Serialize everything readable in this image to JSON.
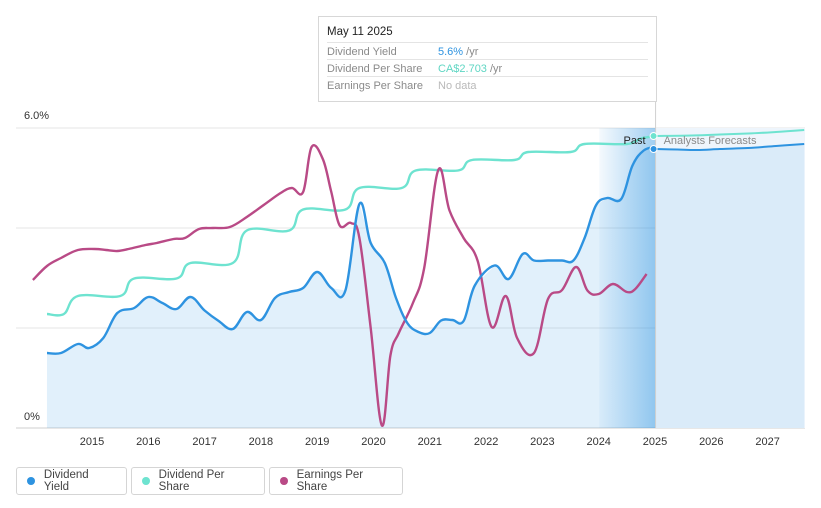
{
  "chart_data": {
    "type": "line",
    "y_axis": {
      "ticks": [
        {
          "value": 0,
          "label": "0%"
        },
        {
          "value": 6,
          "label": "6.0%"
        }
      ],
      "ylim": [
        0,
        6
      ],
      "grid": true
    },
    "x_axis": {
      "ticks": [
        2015,
        2016,
        2017,
        2018,
        2019,
        2020,
        2021,
        2022,
        2023,
        2024,
        2025,
        2026,
        2027
      ],
      "xlim": [
        2014.3,
        2028.0
      ]
    },
    "past_label": "Past",
    "forecast_label": "Analysts Forecasts",
    "series": [
      {
        "name": "Dividend Yield",
        "color": "#2e93e0",
        "filled": true,
        "points": [
          [
            2014.55,
            1.5
          ],
          [
            2014.8,
            1.5
          ],
          [
            2015.1,
            1.68
          ],
          [
            2015.3,
            1.6
          ],
          [
            2015.55,
            1.8
          ],
          [
            2015.8,
            2.3
          ],
          [
            2016.1,
            2.4
          ],
          [
            2016.35,
            2.62
          ],
          [
            2016.6,
            2.5
          ],
          [
            2016.85,
            2.38
          ],
          [
            2017.1,
            2.62
          ],
          [
            2017.35,
            2.35
          ],
          [
            2017.6,
            2.14
          ],
          [
            2017.85,
            1.98
          ],
          [
            2018.1,
            2.32
          ],
          [
            2018.35,
            2.16
          ],
          [
            2018.6,
            2.6
          ],
          [
            2018.85,
            2.72
          ],
          [
            2019.1,
            2.8
          ],
          [
            2019.35,
            3.12
          ],
          [
            2019.6,
            2.8
          ],
          [
            2019.85,
            2.75
          ],
          [
            2020.1,
            4.48
          ],
          [
            2020.3,
            3.7
          ],
          [
            2020.55,
            3.3
          ],
          [
            2020.75,
            2.6
          ],
          [
            2020.95,
            2.1
          ],
          [
            2021.15,
            1.92
          ],
          [
            2021.35,
            1.9
          ],
          [
            2021.55,
            2.15
          ],
          [
            2021.75,
            2.16
          ],
          [
            2021.95,
            2.14
          ],
          [
            2022.15,
            2.85
          ],
          [
            2022.5,
            3.25
          ],
          [
            2022.75,
            2.98
          ],
          [
            2023.0,
            3.48
          ],
          [
            2023.2,
            3.35
          ],
          [
            2023.45,
            3.35
          ],
          [
            2023.7,
            3.35
          ],
          [
            2023.9,
            3.35
          ],
          [
            2024.1,
            3.8
          ],
          [
            2024.3,
            4.45
          ],
          [
            2024.5,
            4.6
          ],
          [
            2024.75,
            4.58
          ],
          [
            2024.95,
            5.25
          ],
          [
            2025.15,
            5.55
          ],
          [
            2025.36,
            5.62
          ]
        ]
      },
      {
        "name": "Dividend Per Share",
        "color": "#6ee3d0",
        "filled": false,
        "points": [
          [
            2014.55,
            2.28
          ],
          [
            2014.85,
            2.28
          ],
          [
            2015.1,
            2.64
          ],
          [
            2015.85,
            2.64
          ],
          [
            2016.1,
            2.99
          ],
          [
            2016.85,
            2.99
          ],
          [
            2017.1,
            3.3
          ],
          [
            2017.85,
            3.3
          ],
          [
            2018.1,
            3.95
          ],
          [
            2018.85,
            3.95
          ],
          [
            2019.1,
            4.37
          ],
          [
            2019.85,
            4.37
          ],
          [
            2020.1,
            4.8
          ],
          [
            2020.85,
            4.8
          ],
          [
            2021.1,
            5.15
          ],
          [
            2021.85,
            5.15
          ],
          [
            2022.1,
            5.36
          ],
          [
            2022.85,
            5.36
          ],
          [
            2023.1,
            5.52
          ],
          [
            2023.85,
            5.52
          ],
          [
            2024.1,
            5.68
          ],
          [
            2024.85,
            5.68
          ],
          [
            2025.1,
            5.79
          ],
          [
            2025.36,
            5.84
          ]
        ]
      },
      {
        "name": "Earnings Per Share",
        "color": "#b94a86",
        "filled": false,
        "points": [
          [
            2014.3,
            2.96
          ],
          [
            2014.55,
            3.24
          ],
          [
            2014.8,
            3.4
          ],
          [
            2015.1,
            3.56
          ],
          [
            2015.4,
            3.58
          ],
          [
            2015.6,
            3.56
          ],
          [
            2015.8,
            3.54
          ],
          [
            2016.0,
            3.58
          ],
          [
            2016.3,
            3.66
          ],
          [
            2016.5,
            3.7
          ],
          [
            2016.8,
            3.78
          ],
          [
            2017.0,
            3.8
          ],
          [
            2017.25,
            3.98
          ],
          [
            2017.5,
            4.0
          ],
          [
            2017.8,
            4.02
          ],
          [
            2018.1,
            4.22
          ],
          [
            2018.4,
            4.46
          ],
          [
            2018.7,
            4.7
          ],
          [
            2018.9,
            4.8
          ],
          [
            2019.1,
            4.72
          ],
          [
            2019.25,
            5.62
          ],
          [
            2019.45,
            5.38
          ],
          [
            2019.6,
            4.72
          ],
          [
            2019.75,
            4.05
          ],
          [
            2019.95,
            4.1
          ],
          [
            2020.1,
            3.8
          ],
          [
            2020.3,
            2.0
          ],
          [
            2020.5,
            0.05
          ],
          [
            2020.65,
            1.45
          ],
          [
            2020.8,
            1.9
          ],
          [
            2021.05,
            2.5
          ],
          [
            2021.25,
            3.2
          ],
          [
            2021.5,
            5.16
          ],
          [
            2021.7,
            4.35
          ],
          [
            2021.95,
            3.8
          ],
          [
            2022.2,
            3.34
          ],
          [
            2022.45,
            2.02
          ],
          [
            2022.7,
            2.64
          ],
          [
            2022.9,
            1.8
          ],
          [
            2023.2,
            1.5
          ],
          [
            2023.45,
            2.58
          ],
          [
            2023.7,
            2.76
          ],
          [
            2023.95,
            3.22
          ],
          [
            2024.15,
            2.75
          ],
          [
            2024.35,
            2.68
          ],
          [
            2024.6,
            2.88
          ],
          [
            2024.85,
            2.72
          ],
          [
            2025.0,
            2.78
          ],
          [
            2025.2,
            3.08
          ]
        ]
      }
    ],
    "forecast": {
      "start": 2025.36,
      "dividend_yield": [
        [
          2025.36,
          5.58
        ],
        [
          2025.75,
          5.57
        ],
        [
          2026.1,
          5.56
        ],
        [
          2026.5,
          5.58
        ],
        [
          2027.0,
          5.6
        ],
        [
          2027.5,
          5.64
        ],
        [
          2028.0,
          5.68
        ]
      ],
      "dividend_per_share": [
        [
          2025.36,
          5.84
        ],
        [
          2026.0,
          5.85
        ],
        [
          2026.5,
          5.87
        ],
        [
          2027.0,
          5.89
        ],
        [
          2027.5,
          5.92
        ],
        [
          2028.0,
          5.96
        ]
      ]
    },
    "highlight_start": 2024.36,
    "marker_x": 2025.36
  },
  "tooltip": {
    "date": "May 11 2025",
    "rows": [
      {
        "label": "Dividend Yield",
        "value": "5.6%",
        "unit": " /yr",
        "color": "#2e93e0"
      },
      {
        "label": "Dividend Per Share",
        "value": "CA$2.703",
        "unit": " /yr",
        "color": "#6ee3d0"
      },
      {
        "label": "Earnings Per Share",
        "value": "No data",
        "unit": "",
        "color": "#b9b9b9"
      }
    ]
  },
  "legend": [
    {
      "label": "Dividend Yield",
      "color": "#2e93e0"
    },
    {
      "label": "Dividend Per Share",
      "color": "#6ee3d0"
    },
    {
      "label": "Earnings Per Share",
      "color": "#b94a86"
    }
  ]
}
